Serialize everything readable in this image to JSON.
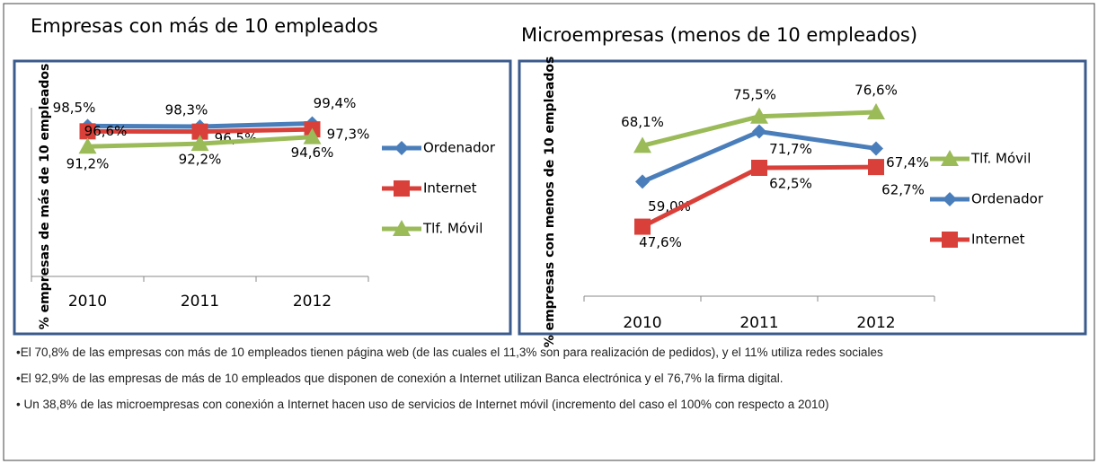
{
  "chart_data": [
    {
      "type": "line",
      "title": "Empresas con más de 10 empleados",
      "y_label": "% empresas de más de 10 empleados",
      "categories": [
        "2010",
        "2011",
        "2012"
      ],
      "ylim": [
        45,
        105
      ],
      "legend": "right",
      "series": [
        {
          "name": "Ordenador",
          "color": "#4a7ebb",
          "marker": "diamond",
          "values": [
            98.5,
            98.3,
            99.4
          ],
          "value_labels": [
            "98,5%",
            "98,3%",
            "99,4%"
          ]
        },
        {
          "name": "Internet",
          "color": "#d9403a",
          "marker": "square",
          "values": [
            96.6,
            96.5,
            97.3
          ],
          "value_labels": [
            "96,6%",
            "96,5%",
            "97,3%"
          ]
        },
        {
          "name": "Tlf. Móvil",
          "color": "#9bbb59",
          "marker": "triangle",
          "values": [
            91.2,
            92.2,
            94.6
          ],
          "value_labels": [
            "91,2%",
            "92,2%",
            "94,6%"
          ]
        }
      ]
    },
    {
      "type": "line",
      "title": "Microempresas (menos de 10 empleados)",
      "y_label": "% empresas con menos de 10 empleados",
      "categories": [
        "2010",
        "2011",
        "2012"
      ],
      "ylim": [
        30,
        80
      ],
      "legend": "right",
      "series": [
        {
          "name": "Tlf. Móvil",
          "color": "#9bbb59",
          "marker": "triangle",
          "values": [
            68.1,
            75.5,
            76.6
          ],
          "value_labels": [
            "68,1%",
            "75,5%",
            "76,6%"
          ]
        },
        {
          "name": "Ordenador",
          "color": "#4a7ebb",
          "marker": "diamond",
          "values": [
            59.0,
            71.7,
            67.4
          ],
          "value_labels": [
            "59,0%",
            "71,7%",
            "67,4%"
          ]
        },
        {
          "name": "Internet",
          "color": "#d9403a",
          "marker": "square",
          "values": [
            47.6,
            62.5,
            62.7
          ],
          "value_labels": [
            "47,6%",
            "62,5%",
            "62,7%"
          ]
        }
      ]
    }
  ],
  "notes": [
    "El 70,8% de las empresas con más de 10 empleados tienen página web (de las cuales el 11,3% son para realización de pedidos), y el 11% utiliza redes sociales",
    "El 92,9% de las empresas de más de 10 empleados que disponen de conexión a Internet  utilizan Banca electrónica y el 76,7% la firma digital.",
    " Un 38,8% de las microempresas con conexión a Internet hacen uso de servicios de Internet móvil (incremento del  caso el 100% con respecto a 2010)"
  ]
}
